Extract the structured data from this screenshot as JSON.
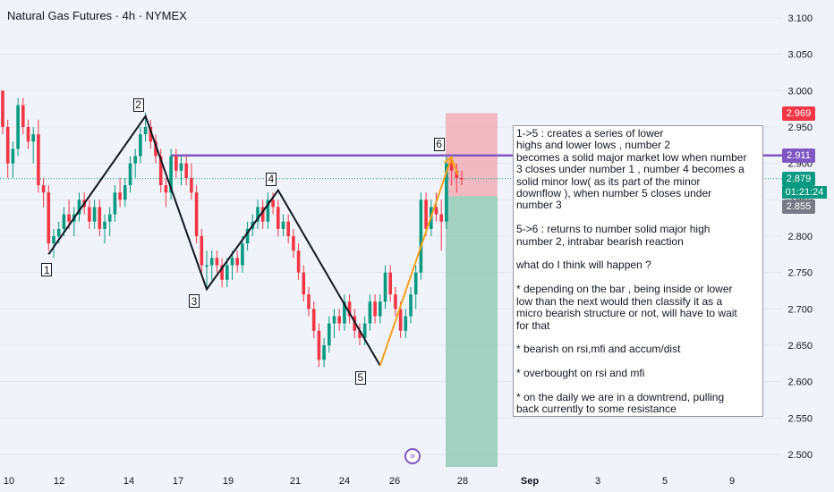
{
  "header": {
    "title": "Natural Gas Futures · 4h · NYMEX"
  },
  "chart_data": {
    "type": "candlestick",
    "symbol": "Natural Gas Futures",
    "interval": "4h",
    "exchange": "NYMEX",
    "ylim": [
      2.48,
      3.12
    ],
    "y_ticks": [
      "3.100",
      "3.050",
      "3.000",
      "2.950",
      "2.900",
      "2.850",
      "2.800",
      "2.750",
      "2.700",
      "2.650",
      "2.600",
      "2.550",
      "2.500"
    ],
    "x_ticks": [
      "10",
      "12",
      "14",
      "17",
      "19",
      "21",
      "24",
      "26",
      "28",
      "Sep",
      "3",
      "5",
      "9"
    ],
    "price_labels": [
      {
        "value": "2.969",
        "color": "#f23645"
      },
      {
        "value": "2.911",
        "color": "#7e57c2"
      },
      {
        "value": "2.879",
        "color": "#089981"
      },
      {
        "value": "2.855",
        "color": "#787b86"
      }
    ],
    "countdown": "01:21:24",
    "current_price": 2.879,
    "horizontal_line": {
      "price": 2.911,
      "color": "#7e57c2"
    },
    "candles": [
      [
        3.0,
        3.0,
        2.94,
        2.95
      ],
      [
        2.95,
        2.96,
        2.88,
        2.9
      ],
      [
        2.9,
        2.93,
        2.88,
        2.92
      ],
      [
        2.92,
        2.99,
        2.91,
        2.98
      ],
      [
        2.98,
        2.99,
        2.94,
        2.95
      ],
      [
        2.95,
        2.96,
        2.92,
        2.93
      ],
      [
        2.93,
        2.95,
        2.9,
        2.94
      ],
      [
        2.94,
        2.96,
        2.86,
        2.87
      ],
      [
        2.87,
        2.88,
        2.84,
        2.86
      ],
      [
        2.86,
        2.87,
        2.78,
        2.79
      ],
      [
        2.79,
        2.81,
        2.77,
        2.8
      ],
      [
        2.8,
        2.82,
        2.79,
        2.81
      ],
      [
        2.81,
        2.84,
        2.8,
        2.83
      ],
      [
        2.83,
        2.85,
        2.81,
        2.82
      ],
      [
        2.82,
        2.84,
        2.8,
        2.83
      ],
      [
        2.83,
        2.86,
        2.82,
        2.85
      ],
      [
        2.85,
        2.86,
        2.83,
        2.84
      ],
      [
        2.84,
        2.85,
        2.81,
        2.82
      ],
      [
        2.82,
        2.85,
        2.81,
        2.84
      ],
      [
        2.84,
        2.85,
        2.8,
        2.81
      ],
      [
        2.81,
        2.83,
        2.79,
        2.82
      ],
      [
        2.82,
        2.84,
        2.8,
        2.83
      ],
      [
        2.83,
        2.87,
        2.82,
        2.86
      ],
      [
        2.86,
        2.88,
        2.84,
        2.85
      ],
      [
        2.85,
        2.88,
        2.84,
        2.87
      ],
      [
        2.87,
        2.91,
        2.86,
        2.9
      ],
      [
        2.9,
        2.92,
        2.88,
        2.91
      ],
      [
        2.91,
        2.95,
        2.9,
        2.94
      ],
      [
        2.94,
        2.97,
        2.93,
        2.95
      ],
      [
        2.95,
        2.96,
        2.92,
        2.93
      ],
      [
        2.93,
        2.94,
        2.9,
        2.91
      ],
      [
        2.91,
        2.92,
        2.86,
        2.87
      ],
      [
        2.87,
        2.88,
        2.84,
        2.86
      ],
      [
        2.86,
        2.92,
        2.85,
        2.91
      ],
      [
        2.91,
        2.92,
        2.88,
        2.89
      ],
      [
        2.89,
        2.91,
        2.87,
        2.9
      ],
      [
        2.9,
        2.91,
        2.87,
        2.88
      ],
      [
        2.88,
        2.9,
        2.85,
        2.86
      ],
      [
        2.86,
        2.87,
        2.79,
        2.8
      ],
      [
        2.8,
        2.81,
        2.75,
        2.76
      ],
      [
        2.76,
        2.78,
        2.73,
        2.76
      ],
      [
        2.76,
        2.78,
        2.74,
        2.77
      ],
      [
        2.77,
        2.78,
        2.75,
        2.76
      ],
      [
        2.76,
        2.77,
        2.73,
        2.74
      ],
      [
        2.74,
        2.77,
        2.73,
        2.76
      ],
      [
        2.76,
        2.78,
        2.74,
        2.77
      ],
      [
        2.77,
        2.78,
        2.75,
        2.76
      ],
      [
        2.76,
        2.8,
        2.75,
        2.79
      ],
      [
        2.79,
        2.82,
        2.78,
        2.81
      ],
      [
        2.81,
        2.83,
        2.8,
        2.82
      ],
      [
        2.82,
        2.85,
        2.81,
        2.84
      ],
      [
        2.84,
        2.85,
        2.81,
        2.82
      ],
      [
        2.82,
        2.86,
        2.81,
        2.85
      ],
      [
        2.85,
        2.86,
        2.83,
        2.84
      ],
      [
        2.84,
        2.85,
        2.8,
        2.81
      ],
      [
        2.81,
        2.83,
        2.8,
        2.82
      ],
      [
        2.82,
        2.83,
        2.79,
        2.8
      ],
      [
        2.8,
        2.81,
        2.77,
        2.78
      ],
      [
        2.78,
        2.79,
        2.74,
        2.75
      ],
      [
        2.75,
        2.76,
        2.71,
        2.72
      ],
      [
        2.72,
        2.73,
        2.69,
        2.7
      ],
      [
        2.7,
        2.71,
        2.66,
        2.67
      ],
      [
        2.67,
        2.68,
        2.62,
        2.63
      ],
      [
        2.63,
        2.66,
        2.62,
        2.65
      ],
      [
        2.65,
        2.69,
        2.64,
        2.68
      ],
      [
        2.68,
        2.7,
        2.66,
        2.69
      ],
      [
        2.69,
        2.7,
        2.67,
        2.68
      ],
      [
        2.68,
        2.72,
        2.67,
        2.71
      ],
      [
        2.71,
        2.72,
        2.68,
        2.69
      ],
      [
        2.69,
        2.7,
        2.66,
        2.67
      ],
      [
        2.67,
        2.68,
        2.65,
        2.66
      ],
      [
        2.66,
        2.69,
        2.65,
        2.68
      ],
      [
        2.68,
        2.72,
        2.67,
        2.71
      ],
      [
        2.71,
        2.72,
        2.68,
        2.69
      ],
      [
        2.69,
        2.72,
        2.68,
        2.71
      ],
      [
        2.71,
        2.76,
        2.7,
        2.75
      ],
      [
        2.75,
        2.76,
        2.71,
        2.72
      ],
      [
        2.72,
        2.73,
        2.69,
        2.7
      ],
      [
        2.7,
        2.71,
        2.66,
        2.67
      ],
      [
        2.67,
        2.7,
        2.66,
        2.69
      ],
      [
        2.69,
        2.73,
        2.68,
        2.72
      ],
      [
        2.72,
        2.76,
        2.7,
        2.75
      ],
      [
        2.75,
        2.86,
        2.74,
        2.85
      ],
      [
        2.85,
        2.86,
        2.8,
        2.81
      ],
      [
        2.81,
        2.85,
        2.8,
        2.84
      ],
      [
        2.84,
        2.86,
        2.82,
        2.83
      ],
      [
        2.83,
        2.85,
        2.78,
        2.82
      ],
      [
        2.82,
        2.91,
        2.81,
        2.9
      ],
      [
        2.9,
        2.91,
        2.87,
        2.89
      ],
      [
        2.89,
        2.9,
        2.86,
        2.88
      ],
      [
        2.88,
        2.89,
        2.87,
        2.879
      ]
    ],
    "wave_points": [
      {
        "label": "1",
        "candle": 9,
        "price": 2.775
      },
      {
        "label": "2",
        "candle": 28,
        "price": 2.965
      },
      {
        "label": "3",
        "candle": 40,
        "price": 2.727
      },
      {
        "label": "4",
        "candle": 54,
        "price": 2.863
      },
      {
        "label": "5",
        "candle": 74,
        "price": 2.622
      },
      {
        "label": "6",
        "candle": 88,
        "price": 2.911
      }
    ],
    "position_box": {
      "entry": 2.855,
      "stop": 2.969,
      "target": 2.48,
      "risk_color": "#f2a5ad",
      "reward_color": "#8fc7b3"
    },
    "colors": {
      "up": "#089981",
      "down": "#f23645",
      "wave": "#131722",
      "move": "#f7a21b"
    }
  },
  "note": {
    "text": "1->5 : creates a series of lower\nhighs and lower lows , number 2\nbecomes a solid major market low when number\n3 closes under number 1 , number 4 becomes a\nsolid minor low( as its part of the minor\ndownflow ), when number 5 closes under\nnumber 3\n\n5->6 : returns to number solid major high\nnumber 2, intrabar bearish reaction\n\nwhat do I think will happen ?\n\n* depending on the bar , being inside or lower\nlow than the next would then classify it as a\nmicro bearish structure or not, will have to wait\nfor that\n\n* bearish on rsi,mfi and accum/dist\n\n* overbought on rsi and mfi\n\n* on the daily we are in a downtrend, pulling\nback currently to some resistance"
  },
  "nav_icon": "skip-forward-icon"
}
